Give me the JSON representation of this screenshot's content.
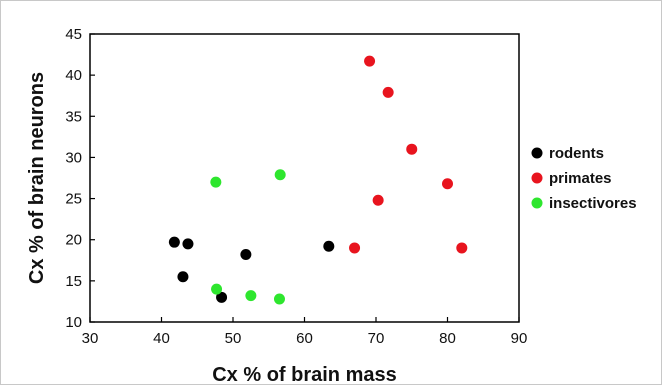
{
  "chart_data": {
    "type": "scatter",
    "title": "",
    "xlabel": "Cx % of brain mass",
    "ylabel": "Cx % of brain neurons",
    "xlim": [
      30,
      90
    ],
    "ylim": [
      10,
      45
    ],
    "xticks": [
      30,
      40,
      50,
      60,
      70,
      80,
      90
    ],
    "yticks": [
      10,
      15,
      20,
      25,
      30,
      35,
      40,
      45
    ],
    "grid": false,
    "legend_position": "right",
    "series": [
      {
        "name": "rodents",
        "color": "#000000",
        "points": [
          {
            "x": 41.8,
            "y": 19.7
          },
          {
            "x": 43.7,
            "y": 19.5
          },
          {
            "x": 43.0,
            "y": 15.5
          },
          {
            "x": 48.4,
            "y": 13.0
          },
          {
            "x": 51.8,
            "y": 18.2
          },
          {
            "x": 63.4,
            "y": 19.2
          }
        ]
      },
      {
        "name": "primates",
        "color": "#e8141e",
        "points": [
          {
            "x": 69.1,
            "y": 41.7
          },
          {
            "x": 71.7,
            "y": 37.9
          },
          {
            "x": 75.0,
            "y": 31.0
          },
          {
            "x": 80.0,
            "y": 26.8
          },
          {
            "x": 70.3,
            "y": 24.8
          },
          {
            "x": 67.0,
            "y": 19.0
          },
          {
            "x": 82.0,
            "y": 19.0
          }
        ]
      },
      {
        "name": "insectivores",
        "color": "#2ee62e",
        "points": [
          {
            "x": 47.6,
            "y": 27.0
          },
          {
            "x": 56.6,
            "y": 27.9
          },
          {
            "x": 47.7,
            "y": 14.0
          },
          {
            "x": 52.5,
            "y": 13.2
          },
          {
            "x": 56.5,
            "y": 12.8
          }
        ]
      }
    ]
  }
}
